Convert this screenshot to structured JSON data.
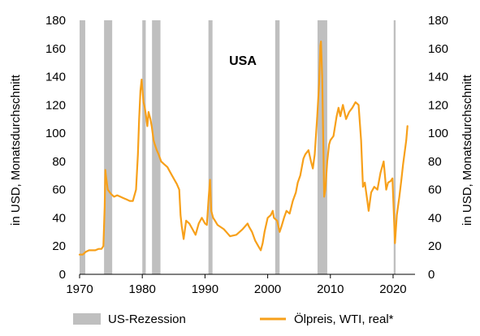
{
  "chart_data": {
    "type": "line",
    "annotation": "USA",
    "ylabel_left": "in USD, Monatsdurchschnitt",
    "ylabel_right": "in USD, Monatsdurchschnitt",
    "xlim": [
      1970,
      2023.5
    ],
    "ylim": [
      0,
      180
    ],
    "x_ticks": [
      1970,
      1980,
      1990,
      2000,
      2010,
      2020
    ],
    "y_ticks": [
      0,
      20,
      40,
      60,
      80,
      100,
      120,
      140,
      160,
      180
    ],
    "grid": false,
    "legend_position": "bottom",
    "colors": {
      "series": "#F7A01A",
      "recession": "#BFBFBF"
    },
    "recessions": [
      {
        "start": 1970.0,
        "end": 1970.9
      },
      {
        "start": 1973.9,
        "end": 1975.2
      },
      {
        "start": 1980.0,
        "end": 1980.55
      },
      {
        "start": 1981.55,
        "end": 1982.9
      },
      {
        "start": 1990.55,
        "end": 1991.2
      },
      {
        "start": 2001.2,
        "end": 2001.9
      },
      {
        "start": 2007.95,
        "end": 2009.5
      },
      {
        "start": 2020.1,
        "end": 2020.4
      }
    ],
    "series": [
      {
        "name": "Ölpreis, WTI, real*",
        "x": [
          1970.0,
          1970.5,
          1971.0,
          1971.5,
          1972.0,
          1972.5,
          1973.0,
          1973.5,
          1973.8,
          1974.0,
          1974.1,
          1974.2,
          1974.5,
          1975.0,
          1975.5,
          1976.0,
          1976.5,
          1977.0,
          1977.5,
          1978.0,
          1978.5,
          1979.0,
          1979.3,
          1979.5,
          1979.7,
          1979.9,
          1980.0,
          1980.2,
          1980.4,
          1980.6,
          1980.8,
          1981.0,
          1981.3,
          1981.5,
          1981.8,
          1982.0,
          1982.3,
          1982.6,
          1983.0,
          1983.5,
          1984.0,
          1984.5,
          1985.0,
          1985.5,
          1985.9,
          1986.1,
          1986.3,
          1986.6,
          1987.0,
          1987.5,
          1988.0,
          1988.5,
          1989.0,
          1989.5,
          1990.0,
          1990.3,
          1990.6,
          1990.8,
          1991.0,
          1991.3,
          1991.6,
          1992.0,
          1993.0,
          1993.8,
          1994.0,
          1995.0,
          1996.0,
          1996.8,
          1997.0,
          1997.5,
          1998.0,
          1998.5,
          1998.9,
          1999.2,
          1999.5,
          2000.0,
          2000.5,
          2000.8,
          2001.0,
          2001.5,
          2001.9,
          2002.2,
          2002.6,
          2003.0,
          2003.5,
          2004.0,
          2004.5,
          2004.8,
          2005.2,
          2005.7,
          2006.0,
          2006.5,
          2006.9,
          2007.2,
          2007.5,
          2007.9,
          2008.2,
          2008.4,
          2008.5,
          2008.7,
          2008.9,
          2009.0,
          2009.2,
          2009.5,
          2009.8,
          2010.0,
          2010.5,
          2011.0,
          2011.3,
          2011.6,
          2012.0,
          2012.5,
          2013.0,
          2013.5,
          2014.0,
          2014.5,
          2014.9,
          2015.2,
          2015.5,
          2015.9,
          2016.1,
          2016.5,
          2017.0,
          2017.5,
          2018.0,
          2018.5,
          2018.9,
          2019.2,
          2019.6,
          2019.9,
          2020.1,
          2020.3,
          2020.6,
          2021.0,
          2021.3,
          2021.6,
          2021.9,
          2022.1,
          2022.3
        ],
        "values": [
          14,
          14,
          16,
          17,
          17,
          17,
          18,
          18,
          20,
          48,
          74,
          70,
          60,
          57,
          55,
          56,
          55,
          54,
          53,
          52,
          52,
          60,
          85,
          110,
          130,
          138,
          132,
          122,
          118,
          112,
          105,
          115,
          110,
          105,
          95,
          92,
          88,
          85,
          80,
          78,
          76,
          72,
          68,
          64,
          60,
          42,
          34,
          25,
          38,
          36,
          32,
          28,
          36,
          40,
          36,
          35,
          55,
          67,
          45,
          40,
          38,
          35,
          32,
          28,
          27,
          28,
          32,
          36,
          34,
          30,
          24,
          20,
          17,
          22,
          30,
          40,
          42,
          45,
          40,
          38,
          30,
          34,
          40,
          45,
          43,
          52,
          58,
          65,
          70,
          82,
          85,
          88,
          80,
          75,
          85,
          112,
          135,
          162,
          165,
          140,
          85,
          55,
          60,
          80,
          92,
          95,
          98,
          112,
          118,
          112,
          120,
          110,
          115,
          118,
          122,
          120,
          95,
          62,
          65,
          52,
          45,
          58,
          62,
          60,
          72,
          80,
          60,
          65,
          66,
          68,
          45,
          22,
          42,
          55,
          66,
          78,
          88,
          95,
          105
        ]
      }
    ]
  },
  "legend": {
    "recession_label": "US-Rezession",
    "series_label": "Ölpreis, WTI, real*"
  }
}
